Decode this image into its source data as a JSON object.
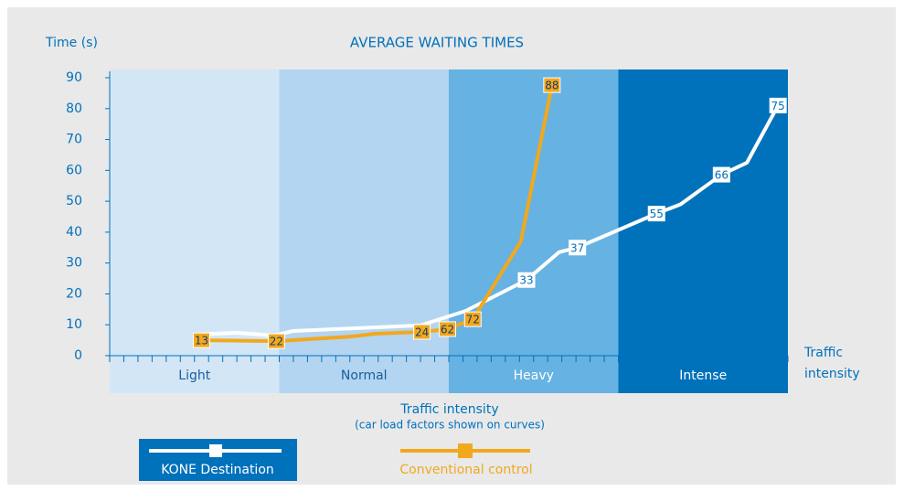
{
  "chart_data": {
    "type": "line",
    "title": "AVERAGE WAITING TIMES",
    "y_label": "Time (s)",
    "x_label": "Traffic intensity",
    "x_sublabel": "(car load factors shown on curves)",
    "x_end_label": [
      "Traffic",
      "intensity"
    ],
    "xlim": [
      0,
      48
    ],
    "xticks": [
      0,
      1,
      2,
      3,
      4,
      5,
      6,
      7,
      8,
      9,
      10,
      11,
      12,
      13,
      14,
      15,
      16,
      17,
      18,
      19,
      20,
      21,
      22,
      23,
      24,
      25,
      26,
      27,
      28,
      29,
      30,
      31,
      32,
      33,
      34,
      35,
      36,
      37,
      38,
      39,
      40,
      41,
      42,
      43,
      44,
      45,
      46,
      47,
      48
    ],
    "ylim": [
      0,
      90
    ],
    "yticks": [
      0,
      10,
      20,
      30,
      40,
      50,
      60,
      70,
      80,
      90
    ],
    "bands": [
      {
        "label": "Light",
        "range": [
          0,
          12
        ],
        "color": "#d3e6f6",
        "label_color": "#1a5fa0"
      },
      {
        "label": "Normal",
        "range": [
          12,
          24
        ],
        "color": "#b3d5f1",
        "label_color": "#1a5fa0"
      },
      {
        "label": "Heavy",
        "range": [
          24,
          36
        ],
        "color": "#66b2e3",
        "label_color": "#ffffff"
      },
      {
        "label": "Intense",
        "range": [
          36,
          48
        ],
        "color": "#0071bb",
        "label_color": "#ffffff"
      }
    ],
    "series": [
      {
        "name": "KONE Destination",
        "color": "#ffffff",
        "label_fill": "#ffffff",
        "label_text": "#0071bb",
        "x": [
          6,
          9,
          11.6,
          13,
          22,
          25.2,
          29.5,
          31.8,
          33.1,
          38.7,
          40.4,
          43.3,
          45.1,
          47.3
        ],
        "y": [
          6.8,
          7.4,
          6.5,
          8,
          9.8,
          14.5,
          24.5,
          33.5,
          35,
          46,
          49,
          58.6,
          62.5,
          81
        ],
        "load_factors": [
          null,
          null,
          null,
          null,
          null,
          null,
          "33",
          null,
          "37",
          "55",
          null,
          "66",
          null,
          "75"
        ]
      },
      {
        "name": "Conventional control",
        "color": "#f2a81d",
        "label_fill": "#f2a81d",
        "label_text": "#1a3c66",
        "x": [
          6.5,
          11.8,
          17.1,
          18.8,
          22.1,
          23.9,
          25.7,
          29.1,
          31.3
        ],
        "y": [
          5,
          4.7,
          6.2,
          7.1,
          7.7,
          8.6,
          11.8,
          37,
          87.6
        ],
        "load_factors": [
          "13",
          "22",
          null,
          null,
          "24",
          "62",
          "72",
          null,
          "88"
        ]
      }
    ]
  }
}
